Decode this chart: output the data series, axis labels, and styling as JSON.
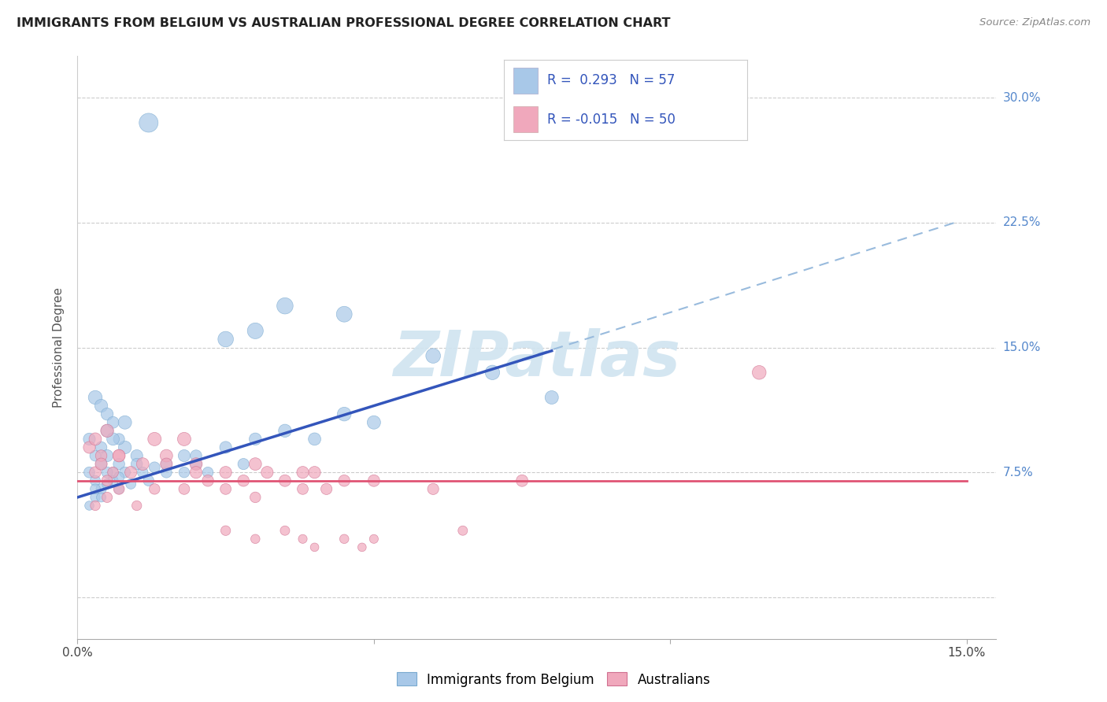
{
  "title": "IMMIGRANTS FROM BELGIUM VS AUSTRALIAN PROFESSIONAL DEGREE CORRELATION CHART",
  "source": "Source: ZipAtlas.com",
  "ylabel_label": "Professional Degree",
  "blue_color": "#a8c8e8",
  "pink_color": "#f0a8bc",
  "blue_line_color": "#3355bb",
  "pink_line_color": "#e05575",
  "dash_color": "#99bbdd",
  "watermark_color": "#d0e4f0",
  "xlim": [
    0.0,
    0.155
  ],
  "ylim": [
    -0.025,
    0.325
  ],
  "ytick_vals": [
    0.0,
    0.075,
    0.15,
    0.225,
    0.3
  ],
  "ytick_labels": [
    "",
    "7.5%",
    "15.0%",
    "22.5%",
    "30.0%"
  ],
  "xtick_vals": [
    0.0,
    0.05,
    0.1,
    0.15
  ],
  "xtick_labels": [
    "0.0%",
    "",
    "",
    "15.0%"
  ],
  "blue_line_x0": 0.0,
  "blue_line_y0": 0.06,
  "blue_line_x1": 0.08,
  "blue_line_y1": 0.148,
  "pink_line_y": 0.07,
  "dash_line_x0": 0.075,
  "dash_line_y0": 0.143,
  "dash_line_x1": 0.148,
  "dash_line_y1": 0.225,
  "blue_scatter_x": [
    0.002,
    0.003,
    0.004,
    0.005,
    0.006,
    0.007,
    0.008,
    0.003,
    0.004,
    0.005,
    0.006,
    0.007,
    0.002,
    0.003,
    0.005,
    0.004,
    0.006,
    0.008,
    0.01,
    0.003,
    0.004,
    0.005,
    0.006,
    0.007,
    0.008,
    0.01,
    0.012,
    0.015,
    0.018,
    0.02,
    0.002,
    0.003,
    0.004,
    0.005,
    0.007,
    0.009,
    0.011,
    0.013,
    0.015,
    0.018,
    0.02,
    0.022,
    0.025,
    0.028,
    0.03,
    0.035,
    0.04,
    0.045,
    0.05,
    0.06,
    0.025,
    0.03,
    0.035,
    0.045,
    0.012,
    0.07,
    0.08
  ],
  "blue_scatter_y": [
    0.095,
    0.085,
    0.09,
    0.1,
    0.075,
    0.08,
    0.09,
    0.12,
    0.115,
    0.11,
    0.105,
    0.095,
    0.075,
    0.07,
    0.085,
    0.08,
    0.095,
    0.105,
    0.085,
    0.06,
    0.065,
    0.075,
    0.07,
    0.065,
    0.075,
    0.08,
    0.07,
    0.075,
    0.085,
    0.08,
    0.055,
    0.065,
    0.06,
    0.068,
    0.072,
    0.068,
    0.075,
    0.078,
    0.08,
    0.075,
    0.085,
    0.075,
    0.09,
    0.08,
    0.095,
    0.1,
    0.095,
    0.11,
    0.105,
    0.145,
    0.155,
    0.16,
    0.175,
    0.17,
    0.285,
    0.135,
    0.12
  ],
  "pink_scatter_x": [
    0.002,
    0.003,
    0.004,
    0.005,
    0.006,
    0.007,
    0.003,
    0.004,
    0.005,
    0.007,
    0.009,
    0.011,
    0.013,
    0.015,
    0.018,
    0.02,
    0.022,
    0.025,
    0.028,
    0.03,
    0.032,
    0.035,
    0.038,
    0.04,
    0.045,
    0.003,
    0.005,
    0.007,
    0.01,
    0.013,
    0.015,
    0.018,
    0.02,
    0.025,
    0.03,
    0.038,
    0.042,
    0.05,
    0.06,
    0.075,
    0.025,
    0.03,
    0.035,
    0.038,
    0.04,
    0.045,
    0.048,
    0.05,
    0.065,
    0.115
  ],
  "pink_scatter_y": [
    0.09,
    0.095,
    0.085,
    0.1,
    0.075,
    0.085,
    0.075,
    0.08,
    0.07,
    0.085,
    0.075,
    0.08,
    0.095,
    0.085,
    0.095,
    0.08,
    0.07,
    0.075,
    0.07,
    0.08,
    0.075,
    0.07,
    0.065,
    0.075,
    0.07,
    0.055,
    0.06,
    0.065,
    0.055,
    0.065,
    0.08,
    0.065,
    0.075,
    0.065,
    0.06,
    0.075,
    0.065,
    0.07,
    0.065,
    0.07,
    0.04,
    0.035,
    0.04,
    0.035,
    0.03,
    0.035,
    0.03,
    0.035,
    0.04,
    0.135
  ],
  "blue_dot_sizes": [
    120,
    100,
    110,
    130,
    90,
    110,
    140,
    160,
    140,
    125,
    115,
    105,
    100,
    90,
    120,
    110,
    130,
    150,
    120,
    80,
    90,
    100,
    90,
    80,
    100,
    110,
    95,
    100,
    120,
    110,
    70,
    85,
    75,
    85,
    90,
    85,
    95,
    100,
    110,
    95,
    110,
    95,
    120,
    105,
    125,
    140,
    130,
    160,
    150,
    180,
    200,
    210,
    220,
    205,
    300,
    175,
    150
  ],
  "pink_dot_sizes": [
    120,
    130,
    110,
    140,
    100,
    120,
    110,
    120,
    100,
    130,
    120,
    130,
    150,
    130,
    150,
    130,
    110,
    120,
    110,
    130,
    120,
    115,
    100,
    120,
    110,
    80,
    90,
    100,
    80,
    95,
    120,
    100,
    120,
    100,
    95,
    120,
    105,
    115,
    105,
    115,
    80,
    70,
    75,
    65,
    60,
    70,
    60,
    65,
    75,
    160
  ]
}
